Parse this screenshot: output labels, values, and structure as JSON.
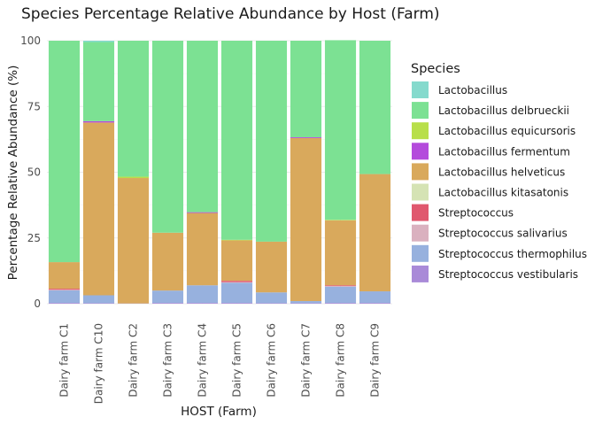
{
  "chart_data": {
    "type": "bar",
    "stacked": true,
    "title": "Species Percentage Relative Abundance by Host (Farm)",
    "xlabel": "HOST (Farm)",
    "ylabel": "Percentage Relative Abundance (%)",
    "ylim": [
      0,
      100
    ],
    "yticks": [
      0,
      25,
      50,
      75,
      100
    ],
    "grid": true,
    "legend": {
      "title": "Species",
      "position": "right"
    },
    "categories": [
      "Dairy farm C1",
      "Dairy farm C10",
      "Dairy farm C2",
      "Dairy farm C3",
      "Dairy farm C4",
      "Dairy farm C5",
      "Dairy farm C6",
      "Dairy farm C7",
      "Dairy farm C8",
      "Dairy farm C9"
    ],
    "series": [
      {
        "name": "Streptococcus vestibularis",
        "color": "#A98AD8",
        "values": [
          0.3,
          0.2,
          0.1,
          0.3,
          0.3,
          0.3,
          0.2,
          0.2,
          0.3,
          0.3
        ]
      },
      {
        "name": "Streptococcus thermophilus",
        "color": "#97B1DE",
        "values": [
          4.8,
          3.0,
          0.0,
          4.7,
          6.7,
          7.7,
          4.1,
          0.8,
          6.2,
          4.4
        ]
      },
      {
        "name": "Streptococcus salivarius",
        "color": "#DAB1BF",
        "values": [
          0.2,
          0.0,
          0.0,
          0.0,
          0.0,
          0.2,
          0.0,
          0.0,
          0.2,
          0.0
        ]
      },
      {
        "name": "Streptococcus",
        "color": "#E0586E",
        "values": [
          0.4,
          0.0,
          0.0,
          0.0,
          0.0,
          0.5,
          0.0,
          0.0,
          0.3,
          0.0
        ]
      },
      {
        "name": "Lactobacillus kitasatonis",
        "color": "#D5E3B4",
        "values": [
          0.0,
          0.0,
          0.0,
          0.0,
          0.0,
          0.0,
          0.0,
          0.0,
          0.0,
          0.0
        ]
      },
      {
        "name": "Lactobacillus helveticus",
        "color": "#D9A95C",
        "values": [
          10.1,
          65.7,
          47.7,
          22.0,
          27.5,
          15.4,
          19.3,
          62.0,
          24.7,
          44.6
        ]
      },
      {
        "name": "Lactobacillus fermentum",
        "color": "#B44BDC",
        "values": [
          0.0,
          0.5,
          0.0,
          0.0,
          0.3,
          0.0,
          0.0,
          0.3,
          0.0,
          0.0
        ]
      },
      {
        "name": "Lactobacillus equicursoris",
        "color": "#B8DF4A",
        "values": [
          0.0,
          0.0,
          0.5,
          0.0,
          0.0,
          0.2,
          0.0,
          0.0,
          0.2,
          0.0
        ]
      },
      {
        "name": "Lactobacillus delbrueckii",
        "color": "#7CE193",
        "values": [
          84.2,
          30.1,
          51.7,
          73.0,
          65.2,
          75.7,
          76.4,
          36.7,
          68.3,
          50.7
        ]
      },
      {
        "name": "Lactobacillus",
        "color": "#85DACD",
        "values": [
          0.0,
          0.5,
          0.0,
          0.0,
          0.0,
          0.0,
          0.0,
          0.0,
          0.0,
          0.0
        ]
      }
    ],
    "legend_order": [
      "Lactobacillus",
      "Lactobacillus delbrueckii",
      "Lactobacillus equicursoris",
      "Lactobacillus fermentum",
      "Lactobacillus helveticus",
      "Lactobacillus kitasatonis",
      "Streptococcus",
      "Streptococcus salivarius",
      "Streptococcus thermophilus",
      "Streptococcus vestibularis"
    ]
  }
}
